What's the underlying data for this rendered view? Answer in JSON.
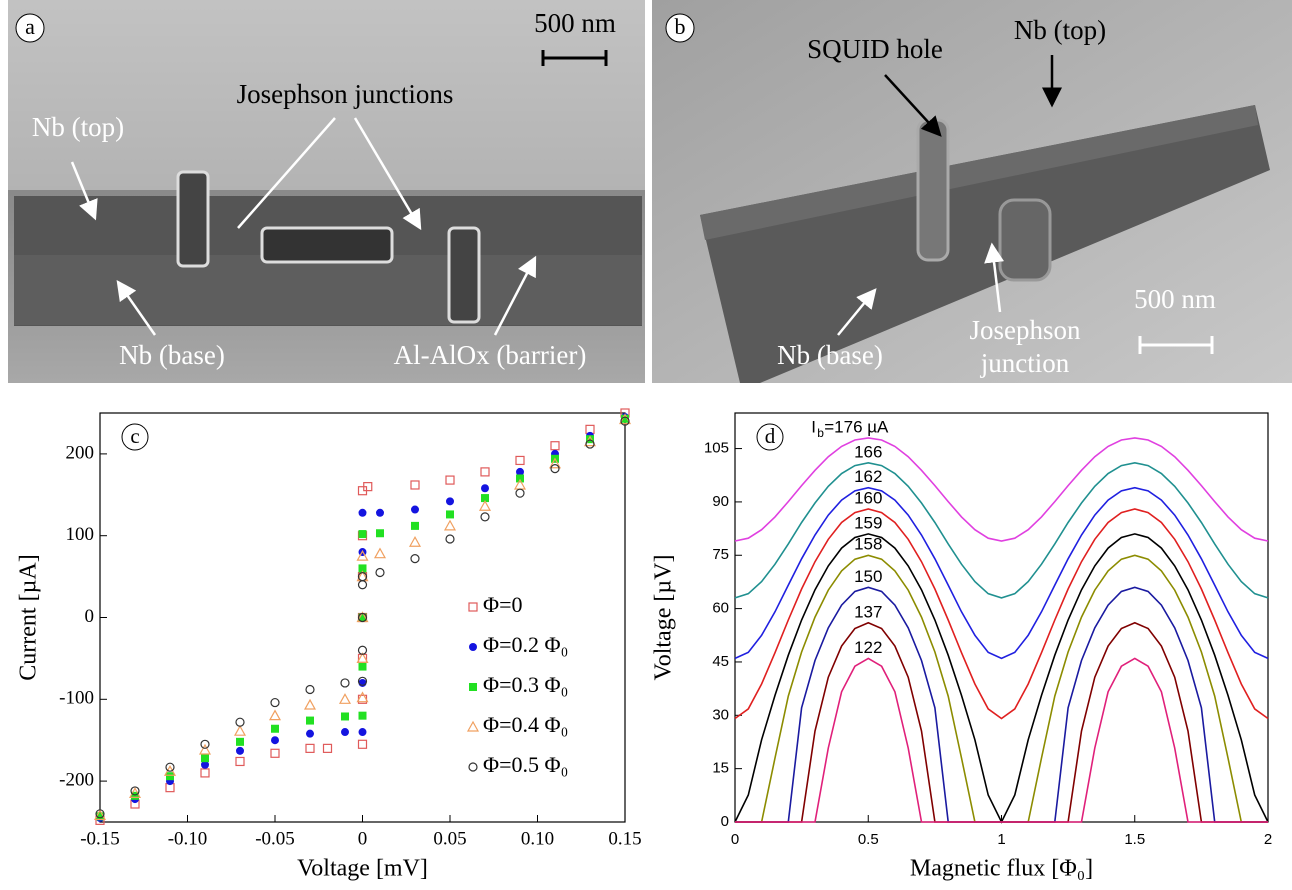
{
  "panels": [
    {
      "label": "a",
      "scale_bar": "500 nm",
      "annotations": [
        "Josephson junctions",
        "Nb (top)",
        "Nb (base)",
        "Al-AlOx (barrier)"
      ]
    },
    {
      "label": "b",
      "scale_bar": "500 nm",
      "annotations": [
        "SQUID hole",
        "Nb (top)",
        "Nb (base)",
        "Josephson",
        "junction"
      ]
    }
  ],
  "chart_data": [
    {
      "type": "scatter",
      "label": "c",
      "x_label": "Voltage [mV]",
      "y_label": "Current [µA]",
      "xlim": [
        -0.15,
        0.15
      ],
      "ylim": [
        -250,
        250
      ],
      "xticks": [
        -0.15,
        {
          "value": -0.1,
          "label": "-0.10"
        },
        -0.05,
        0,
        0.05,
        {
          "value": 0.1,
          "label": "0.10"
        },
        0.15
      ],
      "yticks": [
        -200,
        -100,
        0,
        100,
        200
      ],
      "legend": "lower right",
      "series": [
        {
          "name": "Φ=0",
          "color": "#e05a5a",
          "marker": "square-open",
          "x": [
            -0.15,
            -0.13,
            -0.11,
            -0.09,
            -0.07,
            -0.05,
            -0.03,
            -0.02,
            0,
            0,
            0,
            0,
            0,
            0,
            0,
            0.003,
            0.03,
            0.05,
            0.07,
            0.09,
            0.11,
            0.13,
            0.15
          ],
          "values": [
            -248,
            -228,
            -208,
            -190,
            -176,
            -166,
            -160,
            -160,
            -155,
            -100,
            -50,
            0,
            50,
            100,
            155,
            160,
            162,
            168,
            178,
            192,
            210,
            230,
            250
          ]
        },
        {
          "name": "Φ=0.2 Φ₀",
          "color": "#1414e0",
          "marker": "circle",
          "x": [
            -0.15,
            -0.13,
            -0.11,
            -0.09,
            -0.07,
            -0.05,
            -0.03,
            -0.01,
            0,
            0,
            0,
            0,
            0,
            0.01,
            0.03,
            0.05,
            0.07,
            0.09,
            0.11,
            0.13,
            0.15
          ],
          "values": [
            -245,
            -222,
            -200,
            -180,
            -163,
            -150,
            -142,
            -140,
            -140,
            -80,
            0,
            80,
            128,
            128,
            132,
            142,
            158,
            178,
            200,
            222,
            245
          ]
        },
        {
          "name": "Φ=0.3 Φ₀",
          "color": "#22e022",
          "marker": "square",
          "x": [
            -0.15,
            -0.13,
            -0.11,
            -0.09,
            -0.07,
            -0.05,
            -0.03,
            -0.01,
            0,
            0,
            0,
            0,
            0,
            0.01,
            0.03,
            0.05,
            0.07,
            0.09,
            0.11,
            0.13,
            0.15
          ],
          "values": [
            -243,
            -218,
            -194,
            -172,
            -152,
            -136,
            -126,
            -121,
            -120,
            -60,
            0,
            60,
            102,
            103,
            112,
            126,
            146,
            170,
            194,
            218,
            243
          ]
        },
        {
          "name": "Φ=0.4 Φ₀",
          "color": "#f0a060",
          "marker": "triangle-open",
          "x": [
            -0.15,
            -0.13,
            -0.11,
            -0.09,
            -0.07,
            -0.05,
            -0.03,
            -0.01,
            0,
            0,
            0,
            0,
            0,
            0.01,
            0.03,
            0.05,
            0.07,
            0.09,
            0.11,
            0.13,
            0.15
          ],
          "values": [
            -242,
            -215,
            -188,
            -162,
            -139,
            -120,
            -107,
            -100,
            -98,
            -50,
            0,
            50,
            75,
            78,
            92,
            112,
            136,
            162,
            188,
            215,
            242
          ]
        },
        {
          "name": "Φ=0.5 Φ₀",
          "color": "#333333",
          "marker": "circle-open",
          "x": [
            -0.15,
            -0.13,
            -0.11,
            -0.09,
            -0.07,
            -0.05,
            -0.03,
            -0.01,
            0,
            0,
            0,
            0,
            0,
            0.01,
            0.03,
            0.05,
            0.07,
            0.09,
            0.11,
            0.13,
            0.15
          ],
          "values": [
            -240,
            -212,
            -183,
            -155,
            -128,
            -104,
            -88,
            -80,
            -78,
            -40,
            0,
            40,
            50,
            55,
            72,
            96,
            123,
            152,
            182,
            212,
            240
          ]
        }
      ]
    },
    {
      "type": "line",
      "label": "d",
      "x_label": "Magnetic flux [Φ₀]",
      "y_label": "Voltage [µV]",
      "label_prefix": "I",
      "label_prefix_subscript": "b",
      "xlim": [
        0,
        2
      ],
      "ylim": [
        0,
        115
      ],
      "xticks": [
        0,
        0.5,
        1,
        1.5,
        2
      ],
      "yticks": [
        0,
        15,
        30,
        45,
        60,
        75,
        90,
        105
      ],
      "x": [
        0,
        0.05,
        0.1,
        0.15,
        0.2,
        0.25,
        0.3,
        0.35,
        0.4,
        0.45,
        0.5,
        0.55,
        0.6,
        0.65,
        0.7,
        0.75,
        0.8,
        0.85,
        0.9,
        0.95,
        1,
        1.05,
        1.1,
        1.15,
        1.2,
        1.25,
        1.3,
        1.35,
        1.4,
        1.45,
        1.5,
        1.55,
        1.6,
        1.65,
        1.7,
        1.75,
        1.8,
        1.85,
        1.9,
        1.95,
        2
      ],
      "series": [
        {
          "name": "=176 µA",
          "color": "#e040e0",
          "values": [
            79.0,
            79.8,
            82.2,
            85.8,
            90.1,
            94.6,
            98.9,
            102.7,
            105.6,
            107.4,
            108,
            107.4,
            105.6,
            102.7,
            98.9,
            94.6,
            90.1,
            85.8,
            82.2,
            79.8,
            79.0,
            79.8,
            82.2,
            85.8,
            90.1,
            94.6,
            98.9,
            102.7,
            105.6,
            107.4,
            108,
            107.4,
            105.6,
            102.7,
            98.9,
            94.6,
            90.1,
            85.8,
            82.2,
            79.8,
            79.0
          ]
        },
        {
          "name": "166",
          "color": "#209090",
          "values": [
            63.0,
            64.2,
            67.6,
            72.5,
            78.2,
            84.2,
            89.7,
            94.4,
            98.0,
            100.2,
            101,
            100.2,
            98.0,
            94.4,
            89.7,
            84.2,
            78.2,
            72.5,
            67.6,
            64.2,
            63.0,
            64.2,
            67.6,
            72.5,
            78.2,
            84.2,
            89.7,
            94.4,
            98.0,
            100.2,
            101,
            100.2,
            98.0,
            94.4,
            89.7,
            84.2,
            78.2,
            72.5,
            67.6,
            64.2,
            63.0
          ]
        },
        {
          "name": "162",
          "color": "#2020e0",
          "values": [
            46.0,
            47.7,
            52.5,
            59.1,
            66.6,
            74.0,
            80.7,
            86.3,
            90.5,
            93.1,
            94,
            93.1,
            90.5,
            86.3,
            80.7,
            74.0,
            66.6,
            59.1,
            52.5,
            47.7,
            46.0,
            47.7,
            52.5,
            59.1,
            66.6,
            74.0,
            80.7,
            86.3,
            90.5,
            93.1,
            94,
            93.1,
            90.5,
            86.3,
            80.7,
            74.0,
            66.6,
            59.1,
            52.5,
            47.7,
            46.0
          ]
        },
        {
          "name": "160",
          "color": "#e02020",
          "values": [
            29.1,
            31.8,
            38.8,
            47.6,
            56.8,
            65.5,
            73.2,
            79.5,
            84.2,
            87.0,
            88,
            87.0,
            84.2,
            79.5,
            73.2,
            65.5,
            56.8,
            47.6,
            38.8,
            31.8,
            29.1,
            31.8,
            38.8,
            47.6,
            56.8,
            65.5,
            73.2,
            79.5,
            84.2,
            87.0,
            88,
            87.0,
            84.2,
            79.5,
            73.2,
            65.5,
            56.8,
            47.6,
            38.8,
            31.8,
            29.1
          ]
        },
        {
          "name": "159",
          "color": "#000000",
          "values": [
            0,
            7.6,
            23.1,
            35.6,
            46.9,
            56.8,
            65.3,
            72.0,
            77.0,
            80.0,
            81,
            80.0,
            77.0,
            72.0,
            65.3,
            56.8,
            46.9,
            35.6,
            23.1,
            7.6,
            0,
            7.6,
            23.1,
            35.6,
            46.9,
            56.8,
            65.3,
            72.0,
            77.0,
            80.0,
            81,
            80.0,
            77.0,
            72.0,
            65.3,
            56.8,
            46.9,
            35.6,
            23.1,
            7.6,
            0
          ]
        },
        {
          "name": "158",
          "color": "#8c8c00",
          "values": [
            0,
            0,
            0,
            18.0,
            35.4,
            47.8,
            57.6,
            65.2,
            70.6,
            73.9,
            75,
            73.9,
            70.6,
            65.2,
            57.6,
            47.8,
            35.4,
            18.0,
            0,
            0,
            0,
            0,
            0,
            18.0,
            35.4,
            47.8,
            57.6,
            65.2,
            70.6,
            73.9,
            75,
            73.9,
            70.6,
            65.2,
            57.6,
            47.8,
            35.4,
            18.0,
            0,
            0,
            0
          ]
        },
        {
          "name": "150",
          "color": "#1a1aa0",
          "values": [
            0,
            0,
            0,
            0,
            0,
            32.1,
            45.4,
            54.6,
            61.0,
            64.8,
            66,
            64.8,
            61.0,
            54.6,
            45.4,
            32.1,
            0,
            0,
            0,
            0,
            0,
            0,
            0,
            0,
            0,
            32.1,
            45.4,
            54.6,
            61.0,
            64.8,
            66,
            64.8,
            61.0,
            54.6,
            45.4,
            32.1,
            0,
            0,
            0,
            0,
            0
          ]
        },
        {
          "name": "137",
          "color": "#800000",
          "values": [
            0,
            0,
            0,
            0,
            0,
            0,
            25.6,
            40.7,
            49.5,
            54.4,
            56,
            54.4,
            49.5,
            40.7,
            25.6,
            0,
            0,
            0,
            0,
            0,
            0,
            0,
            0,
            0,
            0,
            0,
            25.6,
            40.7,
            49.5,
            54.4,
            56,
            54.4,
            49.5,
            40.7,
            25.6,
            0,
            0,
            0,
            0,
            0,
            0
          ]
        },
        {
          "name": "122",
          "color": "#e0207a",
          "values": [
            0,
            0,
            0,
            0,
            0,
            0,
            0,
            20.8,
            36.6,
            43.8,
            46,
            43.8,
            36.6,
            20.8,
            0,
            0,
            0,
            0,
            0,
            0,
            0,
            0,
            0,
            0,
            0,
            0,
            0,
            20.8,
            36.6,
            43.8,
            46,
            43.8,
            36.6,
            20.8,
            0,
            0,
            0,
            0,
            0,
            0,
            0
          ]
        }
      ]
    }
  ]
}
